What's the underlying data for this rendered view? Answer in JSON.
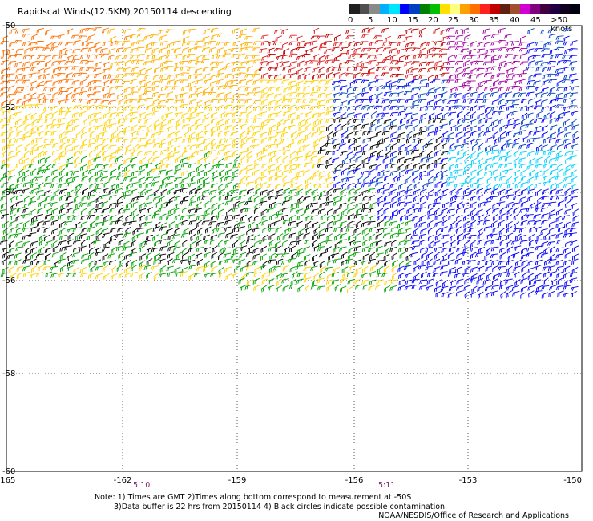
{
  "title": "Rapidscat Winds(12.5KM) 20150114 descending",
  "legend": {
    "labels": [
      "0",
      "5",
      "10",
      "15",
      "20",
      "25",
      "30",
      "35",
      "40",
      "45",
      ">50 knots"
    ],
    "colors": [
      "#202020",
      "#505050",
      "#8a8a8a",
      "#00b0ff",
      "#00e5ff",
      "#0000ff",
      "#0040c0",
      "#008000",
      "#00c000",
      "#ffe000",
      "#ffff80",
      "#ffa000",
      "#ff7000",
      "#ff2020",
      "#c00000",
      "#602010",
      "#a05030",
      "#d000d0",
      "#800080",
      "#400040",
      "#200040",
      "#100020",
      "#000010"
    ]
  },
  "map": {
    "lat_labels": [
      "-50",
      "-52",
      "-54",
      "-56",
      "-58",
      "-60"
    ],
    "lon_labels": [
      "-165",
      "-162",
      "-159",
      "-156",
      "-153",
      "-150"
    ]
  },
  "times": {
    "t1": "5:10",
    "t2": "5:11"
  },
  "note": {
    "line1": "Note: 1) Times are GMT 2)Times along bottom correspond to measurement at -50S",
    "line2": "3)Data buffer is 22 hrs from 20150114 4) Black circles indicate possible contamination"
  },
  "credit": "NOAA/NESDIS/Office of Research and Applications"
}
